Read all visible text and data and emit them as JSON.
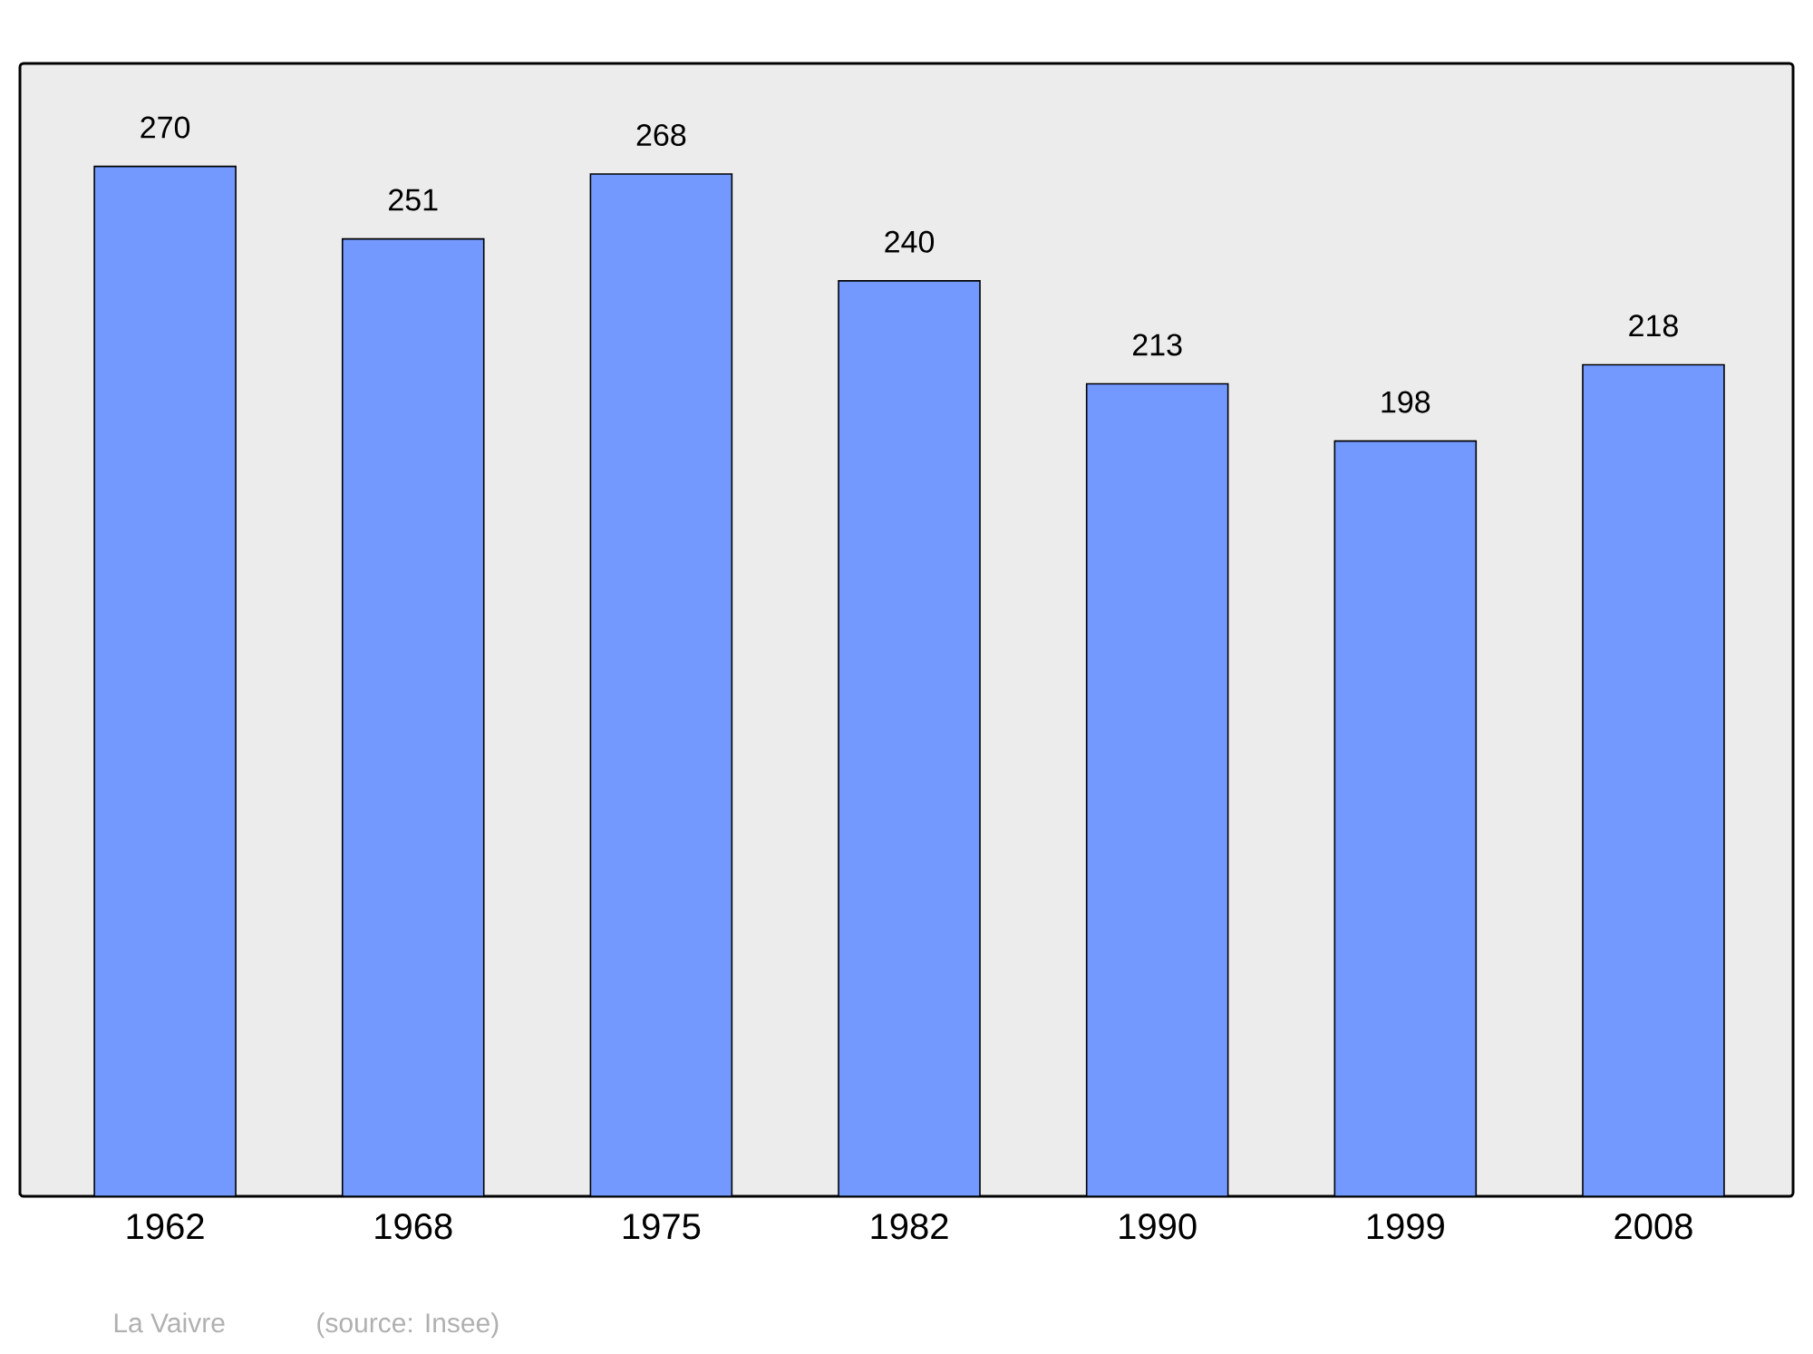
{
  "chart_data": {
    "type": "bar",
    "categories": [
      "1962",
      "1968",
      "1975",
      "1982",
      "1990",
      "1999",
      "2008"
    ],
    "values": [
      270,
      251,
      268,
      240,
      213,
      198,
      218
    ],
    "color": "#7399ff",
    "ylim": [
      0,
      297
    ],
    "data_labels": true,
    "tick_labels": "x",
    "annotations": [
      "La Vaivre",
      "(source: Insee)"
    ]
  }
}
